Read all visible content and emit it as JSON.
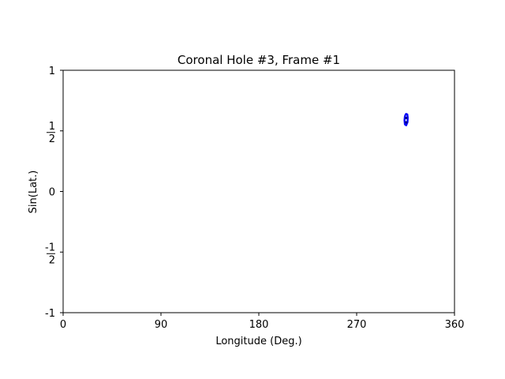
{
  "chart_data": {
    "type": "scatter",
    "title": "Coronal Hole #3, Frame #1",
    "xlabel": "Longitude (Deg.)",
    "ylabel": "Sin(Lat.)",
    "xlim": [
      0,
      360
    ],
    "ylim": [
      -1,
      1
    ],
    "grid": false,
    "x_ticks": [
      {
        "value": 0,
        "label": "0"
      },
      {
        "value": 90,
        "label": "90"
      },
      {
        "value": 180,
        "label": "180"
      },
      {
        "value": 270,
        "label": "270"
      },
      {
        "value": 360,
        "label": "360"
      }
    ],
    "y_ticks": [
      {
        "value": 1,
        "label": "1"
      },
      {
        "value": 0.5,
        "num": "1",
        "den": "2"
      },
      {
        "value": 0,
        "label": "0"
      },
      {
        "value": -0.5,
        "num": "-1",
        "den": "2"
      },
      {
        "value": -1,
        "label": "-1"
      }
    ],
    "series": [
      {
        "color": "#0000ff",
        "outline_color": "#00008b",
        "boundary": [
          [
            314.5,
            0.627
          ],
          [
            315.5,
            0.64
          ],
          [
            316.6,
            0.636
          ],
          [
            317.0,
            0.61
          ],
          [
            316.8,
            0.572
          ],
          [
            315.6,
            0.546
          ],
          [
            314.4,
            0.553
          ],
          [
            314.0,
            0.588
          ],
          [
            314.5,
            0.627
          ]
        ],
        "points": [
          [
            315.6,
            0.607
          ],
          [
            315.6,
            0.57
          ]
        ]
      }
    ]
  }
}
